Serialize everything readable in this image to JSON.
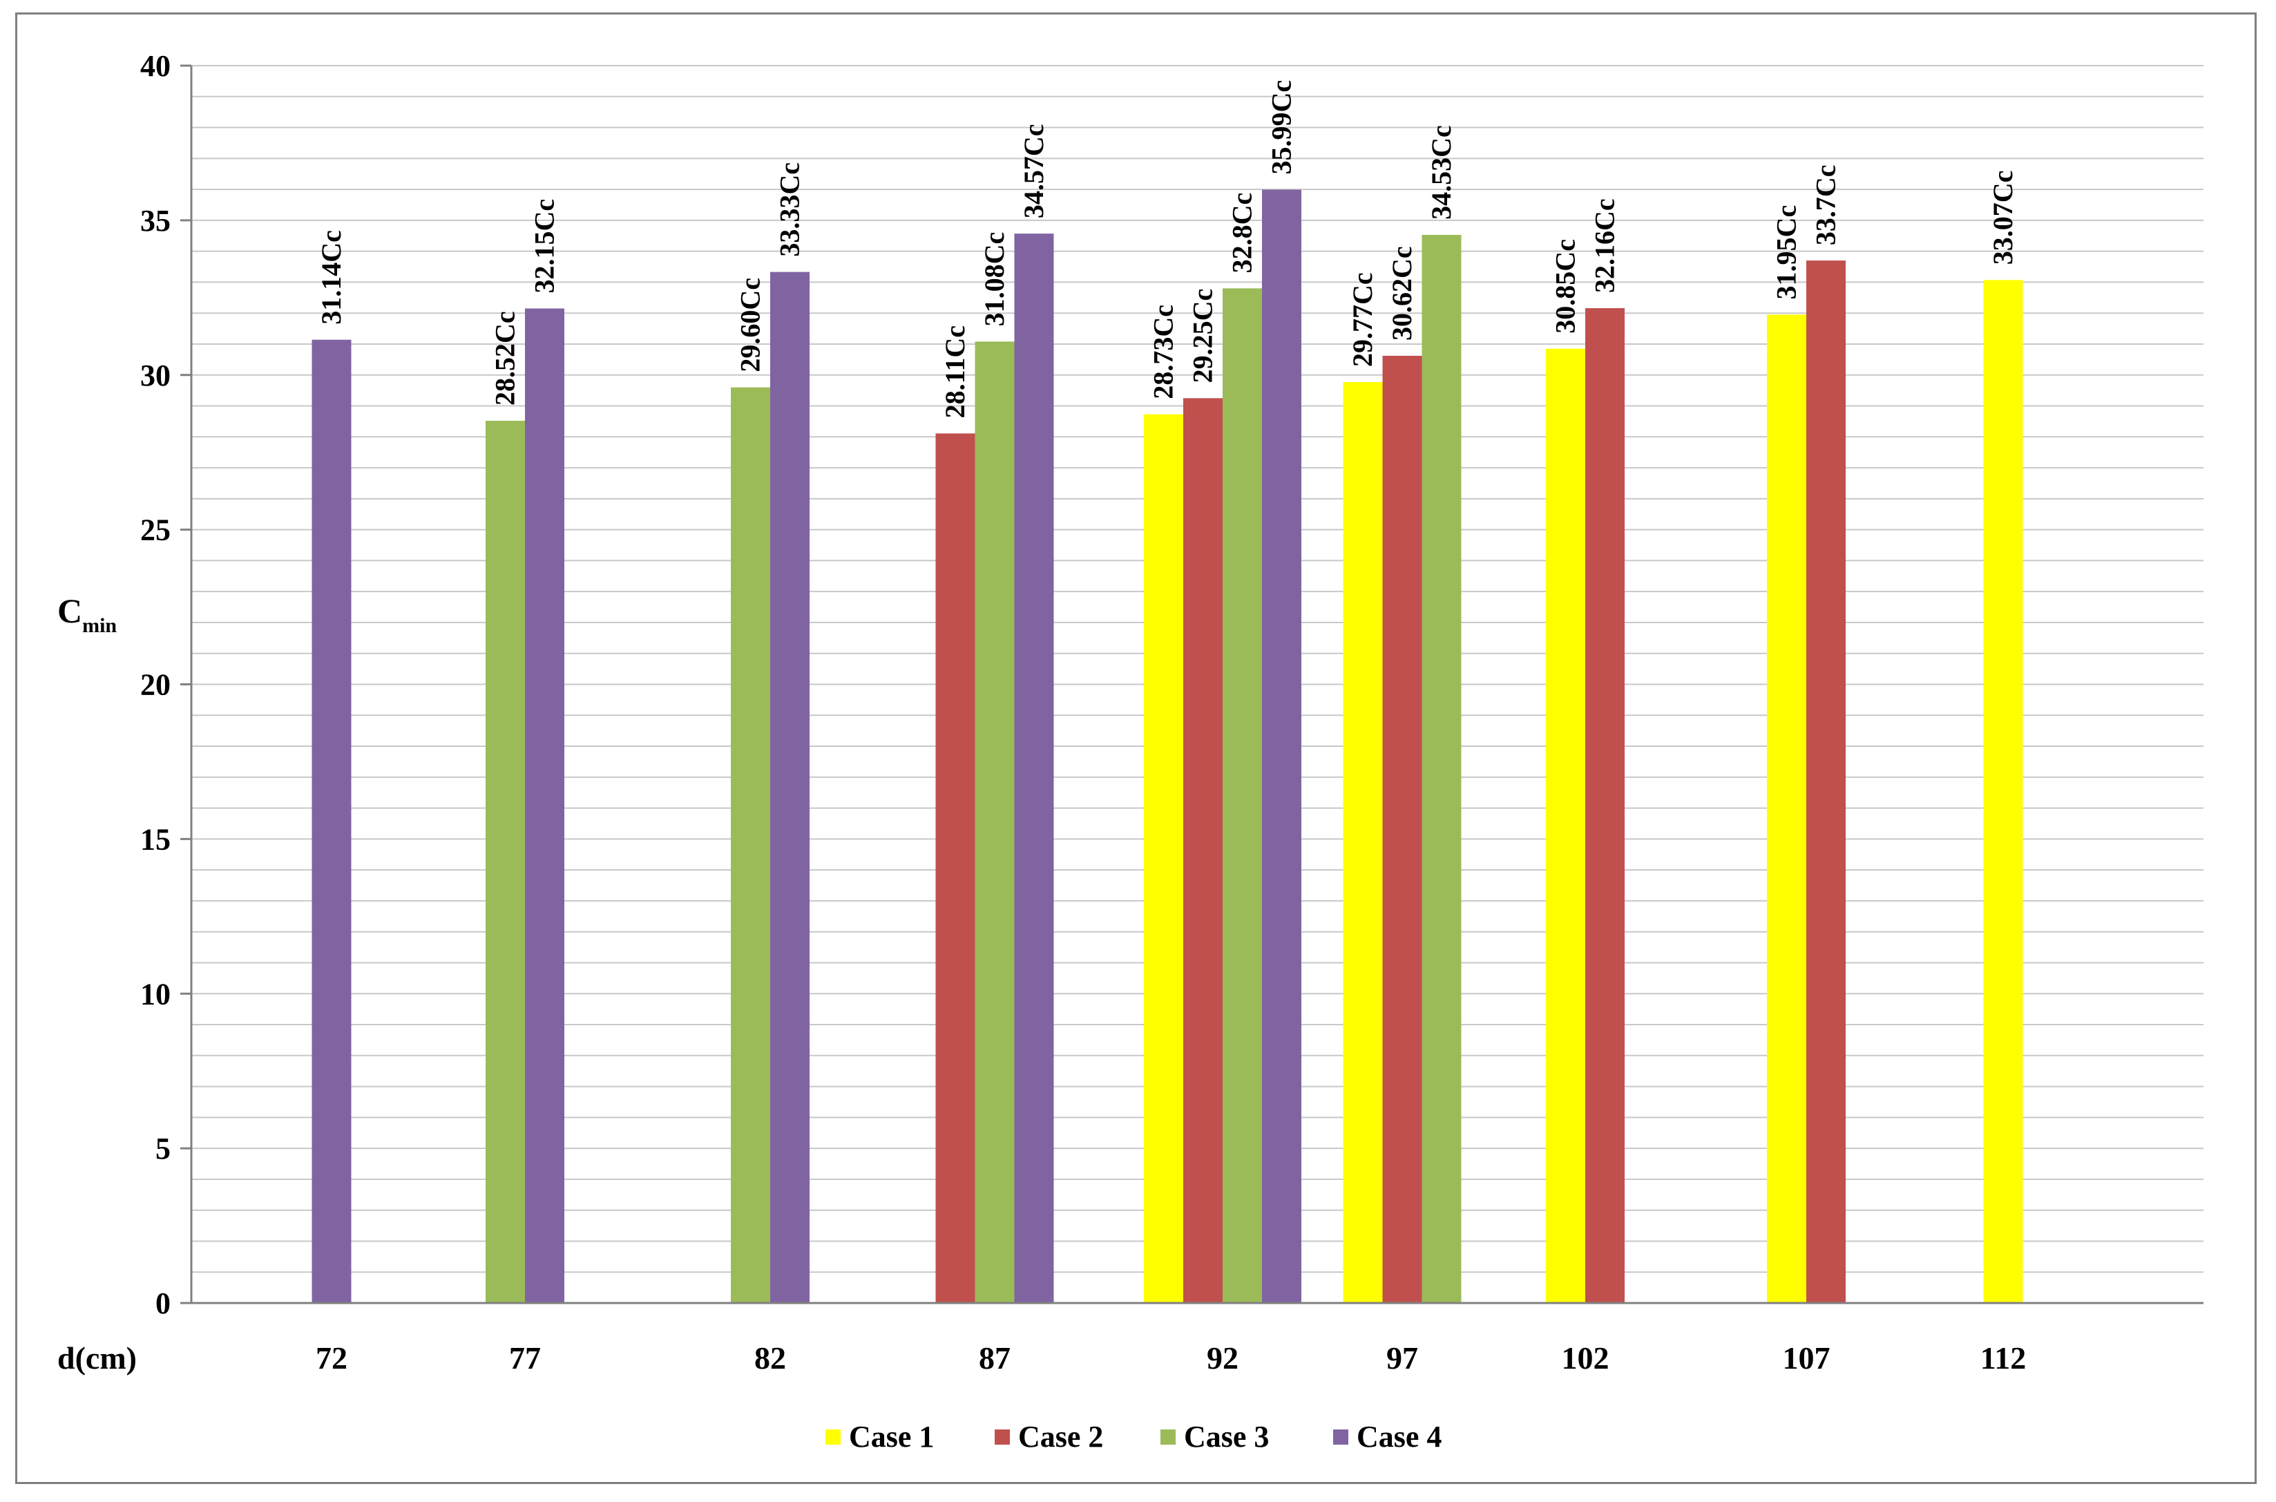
{
  "chart_data": {
    "type": "bar",
    "title": "",
    "xlabel": "d(cm)",
    "ylabel": "C",
    "ylabel_subscript": "min",
    "ylim": [
      0,
      40
    ],
    "yticks": [
      0,
      5,
      10,
      15,
      20,
      25,
      30,
      35,
      40
    ],
    "grid": true,
    "legend_position": "bottom",
    "categories": [
      "72",
      "77",
      "82",
      "87",
      "92",
      "97",
      "102",
      "107",
      "112"
    ],
    "series": [
      {
        "name": "Case 1",
        "color": "#ffff00",
        "values": [
          null,
          null,
          null,
          null,
          28.73,
          29.77,
          30.85,
          31.95,
          33.07
        ],
        "labels": [
          null,
          null,
          null,
          null,
          "28.73Cc",
          "29.77Cc",
          "30.85Cc",
          "31.95Cc",
          "33.07Cc"
        ]
      },
      {
        "name": "Case 2",
        "color": "#c0504d",
        "values": [
          null,
          null,
          null,
          28.11,
          29.25,
          30.62,
          32.16,
          33.7,
          null
        ],
        "labels": [
          null,
          null,
          null,
          "28.11Cc",
          "29.25Cc",
          "30.62Cc",
          "32.16Cc",
          "33.7Cc",
          null
        ]
      },
      {
        "name": "Case 3",
        "color": "#9bbb59",
        "values": [
          null,
          28.52,
          29.6,
          31.08,
          32.8,
          34.53,
          null,
          null,
          null
        ],
        "labels": [
          null,
          "28.52Cc",
          "29.60Cc",
          "31.08Cc",
          "32.8Cc",
          "34.53Cc",
          null,
          null,
          null
        ]
      },
      {
        "name": "Case 4",
        "color": "#8064a2",
        "values": [
          31.14,
          32.15,
          33.33,
          34.57,
          35.99,
          null,
          null,
          null,
          null
        ],
        "labels": [
          "31.14Cc",
          "32.15Cc",
          "33.33Cc",
          "34.57Cc",
          "35.99Cc",
          null,
          null,
          null,
          null
        ]
      }
    ]
  }
}
